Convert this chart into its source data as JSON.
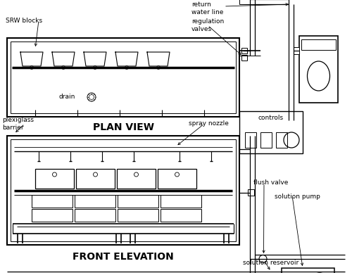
{
  "bg_color": "#ffffff",
  "line_color": "#000000",
  "labels": {
    "srw_blocks": "SRW blocks",
    "drain": "drain",
    "return_water_line": "return\nwater line",
    "regulation_valves": "regulation\nvalves",
    "plan_view": "PLAN VIEW",
    "plexiglass_barrier": "plexiglass\nbarrier",
    "spray_nozzle": "spray nozzle",
    "controls": "controls",
    "flush_valve": "flush valve",
    "solution_pump": "solution pump",
    "front_elevation": "FRONT ELEVATION",
    "solution_reservoir": "solution reservoir"
  }
}
